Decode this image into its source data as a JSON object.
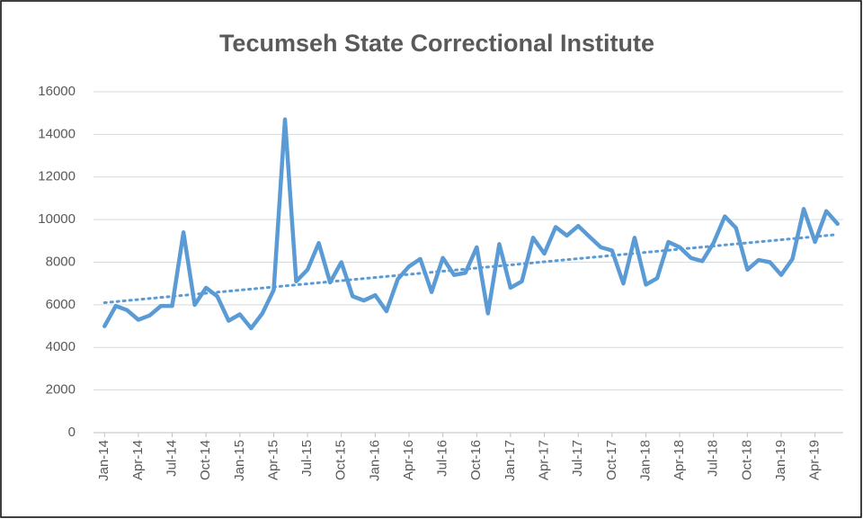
{
  "chart_data": {
    "type": "line",
    "title": "Tecumseh State Correctional Institute",
    "categories": [
      "Jan-14",
      null,
      null,
      "Apr-14",
      null,
      null,
      "Jul-14",
      null,
      null,
      "Oct-14",
      null,
      null,
      "Jan-15",
      null,
      null,
      "Apr-15",
      null,
      null,
      "Jul-15",
      null,
      null,
      "Oct-15",
      null,
      null,
      "Jan-16",
      null,
      null,
      "Apr-16",
      null,
      null,
      "Jul-16",
      null,
      null,
      "Oct-16",
      null,
      null,
      "Jan-17",
      null,
      null,
      "Apr-17",
      null,
      null,
      "Jul-17",
      null,
      null,
      "Oct-17",
      null,
      null,
      "Jan-18",
      null,
      null,
      "Apr-18",
      null,
      null,
      "Jul-18",
      null,
      null,
      "Oct-18",
      null,
      null,
      "Jan-19",
      null,
      null,
      "Apr-19",
      null,
      null
    ],
    "values": [
      5000,
      5950,
      5750,
      5300,
      5500,
      5950,
      5950,
      9400,
      6000,
      6800,
      6400,
      5250,
      5550,
      4900,
      5600,
      6700,
      14700,
      7100,
      7650,
      8900,
      7050,
      8000,
      6400,
      6200,
      6450,
      5700,
      7200,
      7800,
      8150,
      6600,
      8200,
      7400,
      7500,
      8700,
      5600,
      8850,
      6800,
      7100,
      9150,
      8400,
      9650,
      9250,
      9700,
      9200,
      8700,
      8550,
      7000,
      9150,
      6950,
      7250,
      8950,
      8700,
      8200,
      8050,
      8900,
      10150,
      9600,
      7650,
      8100,
      8000,
      7400,
      8150,
      10500,
      8950,
      10400,
      9800
    ],
    "color": "#5b9bd5",
    "trendline": {
      "values": [
        6100,
        9300
      ],
      "style": "dotted"
    },
    "ylim": [
      0,
      16000
    ],
    "yticks": [
      0,
      2000,
      4000,
      6000,
      8000,
      10000,
      12000,
      14000,
      16000
    ],
    "grid": true
  }
}
